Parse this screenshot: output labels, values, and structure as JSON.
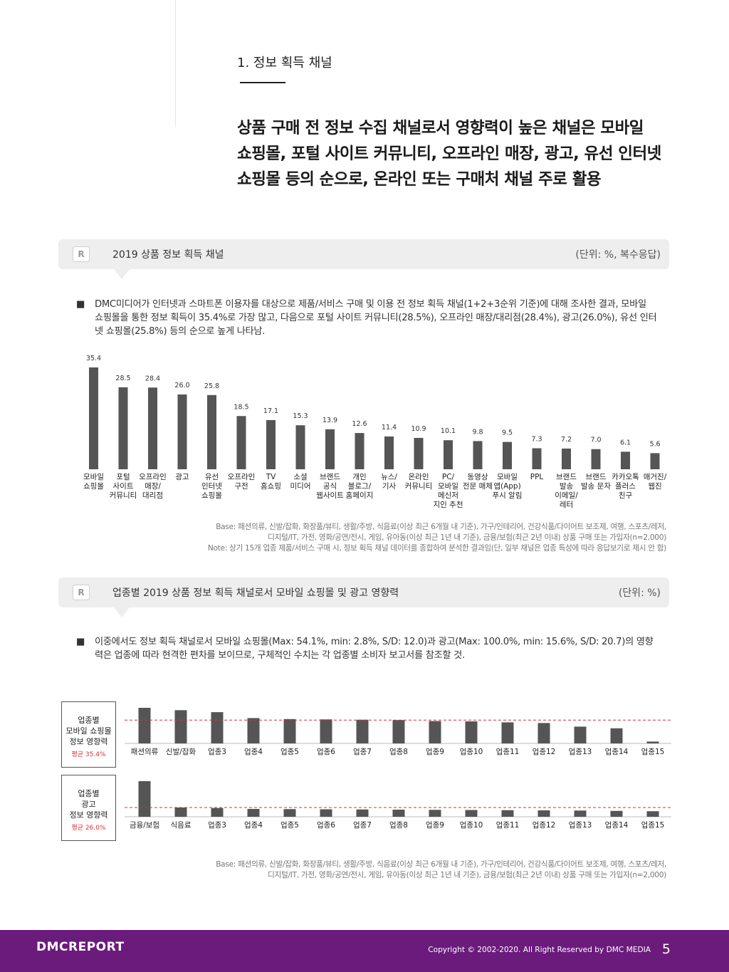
{
  "section": {
    "title": "1. 정보 획득 채널",
    "headline_lines": [
      "상품 구매 전 정보 수집 채널로서 영향력이 높은 채널은 모바일",
      "쇼핑몰, 포털 사이트 커뮤니티, 오프라인 매장, 광고, 유선 인터넷",
      "쇼핑몰 등의 순으로, 온라인 또는 구매처 채널 주로 활용"
    ]
  },
  "panel1": {
    "logo": "R",
    "title": "2019 상품 정보 획득 채널",
    "unit": "(단위: %, 복수응답)",
    "bullet_mark": "■",
    "bullet": "DMC미디어가 인터넷과 스마트폰 이용자를 대상으로 제품/서비스 구매 및 이용 전 정보 획득 채널(1+2+3순위 기준)에 대해 조사한 결과, 모바일 쇼핑몰을 통한 정보 획득이 35.4%로 가장 많고, 다음으로 포털 사이트 커뮤니티(28.5%), 오프라인 매장/대리점(28.4%), 광고(26.0%), 유선 인터넷 쇼핑몰(25.8%) 등의 순으로 높게 나타남.",
    "base": "Base: 패션의류, 신발/잡화, 화장품/뷰티, 생활/주방, 식음료(이상 최근 6개월 내 기준), 가구/인테리어, 건강식품/다이어트 보조제, 여행, 스포츠/레저,",
    "base2": "디지털/IT, 가전, 영화/공연/전시, 게임, 유아동(이상 최근 1년 내 기준), 금융/보험(최근 2년 이내) 상품 구매 또는 가입자(n=2,000)",
    "note": "Note: 상기 15개 업종 제품/서비스 구매 시, 정보 획득 채널 데이터를 종합하여 분석한 결과임(단, 일부 채널은 업종 특성에 따라 응답보기로 제시 안 함)"
  },
  "panel2": {
    "logo": "R",
    "title": "업종별 2019 상품 정보 획득 채널로서 모바일 쇼핑몰 및 광고 영향력",
    "unit": "(단위: %)",
    "bullet_mark": "■",
    "bullet": "이중에서도 정보 획득 채널로서 모바일 쇼핑몰(Max: 54.1%, min: 2.8%, S/D: 12.0)과 광고(Max: 100.0%, min: 15.6%, S/D: 20.7)의 영향력은 업종에 따라 현격한 편차를 보이므로, 구체적인 수치는 각 업종별 소비자 보고서를 참조할 것.",
    "box1_lines": [
      "업종별",
      "모바일 쇼핑몰",
      "정보 영향력"
    ],
    "box1_avg": "평균 35.4%",
    "box2_lines": [
      "업종별",
      "광고",
      "정보 영향력"
    ],
    "box2_avg": "평균 26.0%",
    "base": "Base: 패션의류, 신발/잡화, 화장품/뷰티, 생활/주방, 식음료(이상 최근 6개월 내 기준), 가구/인테리어, 건강식품/다이어트 보조제, 여행, 스포츠/레저,",
    "base2": "디지털/IT, 가전, 영화/공연/전시, 게임, 유아동(이상 최근 1년 내 기준), 금융/보험(최근 2년 이내) 상품 구매 또는 가입자(n=2,000)"
  },
  "footer": {
    "brand": "DMCREPORT",
    "copyright": "Copyright © 2002-2020. All Right Reserved by DMC MEDIA",
    "page": "5"
  },
  "colors": {
    "bar": "#555555",
    "avg_line": "#d33333",
    "footer": "#6b1b7c"
  },
  "chart_data": [
    {
      "type": "bar",
      "title": "2019 상품 정보 획득 채널",
      "categories": [
        [
          "모바일",
          "쇼핑몰"
        ],
        [
          "포털",
          "사이트",
          "커뮤니티"
        ],
        [
          "오프라인",
          "매장/",
          "대리점"
        ],
        [
          "광고"
        ],
        [
          "유선",
          "인터넷",
          "쇼핑몰"
        ],
        [
          "오프라인",
          "구전"
        ],
        [
          "TV",
          "홈쇼핑"
        ],
        [
          "소셜",
          "미디어"
        ],
        [
          "브랜드",
          "공식",
          "웹사이트"
        ],
        [
          "개인",
          "블로그/",
          "홈페이지"
        ],
        [
          "뉴스/",
          "기사"
        ],
        [
          "온라인",
          "커뮤니티"
        ],
        [
          "PC/",
          "모바일",
          "메신저",
          "지인 추천"
        ],
        [
          "동영상",
          "전문 매체"
        ],
        [
          "모바일",
          "앱(App)",
          "푸시 알림"
        ],
        [
          "PPL"
        ],
        [
          "브랜드",
          "발송",
          "이메일/",
          "레터"
        ],
        [
          "브랜드",
          "발송 문자"
        ],
        [
          "카카오톡",
          "플러스",
          "친구"
        ],
        [
          "매거진/",
          "웹진"
        ]
      ],
      "values": [
        35.4,
        28.5,
        28.4,
        26.0,
        25.8,
        18.5,
        17.1,
        15.3,
        13.9,
        12.6,
        11.4,
        10.9,
        10.1,
        9.8,
        9.5,
        7.3,
        7.2,
        7.0,
        6.1,
        5.6
      ],
      "labels": [
        "35.4",
        "28.5",
        "28.4",
        "26.0",
        "25.8",
        "18.5",
        "17.1",
        "15.3",
        "13.9",
        "12.6",
        "11.4",
        "10.9",
        "10.1",
        "9.8",
        "9.5",
        "7.3",
        "7.2",
        "7.0",
        "6.1",
        "5.6"
      ],
      "ylim": [
        0,
        40
      ]
    },
    {
      "type": "bar",
      "categories": [
        "패션의류",
        "신발/잡화",
        "업종3",
        "업종4",
        "업종5",
        "업종6",
        "업종7",
        "업종8",
        "업종9",
        "업종10",
        "업종11",
        "업종12",
        "업종13",
        "업종14",
        "업종15"
      ],
      "values": [
        54.1,
        50.5,
        47.5,
        38.5,
        37.0,
        36.5,
        36.0,
        35.5,
        34.0,
        33.5,
        32.0,
        31.0,
        25.5,
        23.0,
        2.8
      ],
      "average": 35.4,
      "ylim": [
        0,
        60
      ]
    },
    {
      "type": "bar",
      "categories": [
        "금융/보험",
        "식음료",
        "업종3",
        "업종4",
        "업종5",
        "업종6",
        "업종7",
        "업종8",
        "업종9",
        "업종10",
        "업종11",
        "업종12",
        "업종13",
        "업종14",
        "업종15"
      ],
      "values": [
        100.0,
        26.0,
        24.5,
        22.0,
        21.5,
        21.0,
        20.5,
        20.0,
        19.5,
        19.0,
        18.5,
        18.0,
        17.5,
        16.5,
        15.6
      ],
      "average": 26.0,
      "ylim": [
        0,
        110
      ]
    }
  ]
}
